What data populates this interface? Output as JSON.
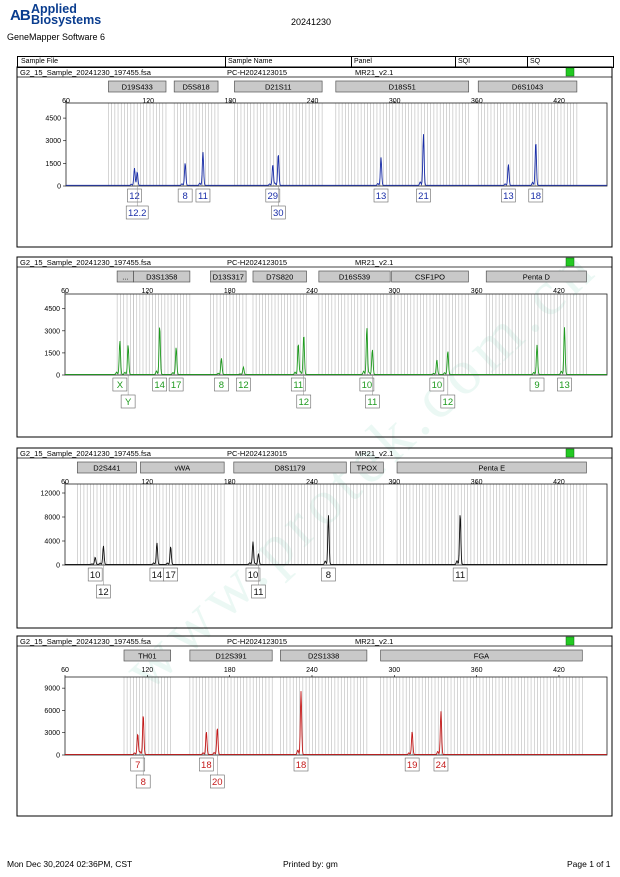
{
  "header": {
    "logo_mark": "AB",
    "logo_line1": "Applied",
    "logo_line2": "Biosystems",
    "software": "GeneMapper Software 6",
    "date": "20241230"
  },
  "columns": [
    "Sample File",
    "Sample Name",
    "Panel",
    "SQI",
    "SQ"
  ],
  "footer": {
    "printed_at": "Mon Dec 30,2024 02:36PM, CST",
    "printed_by": "Printed by: gm",
    "page": "Page 1 of 1"
  },
  "watermark": "www.protek.com.cn",
  "panels": [
    {
      "sample_file": "G2_15_Sample_20241230_197455.fsa",
      "sample_name": "PC-H2024123015",
      "panel": "MR21_v2.1",
      "status_color": "#22c922",
      "color": "#1a2ea8",
      "ymax": 5500,
      "yticks": [
        "4500",
        "3000",
        "1500",
        "0"
      ],
      "yvals": [
        4500,
        3000,
        1500,
        0
      ],
      "markers": [
        {
          "label": "D19S433",
          "start": 91,
          "end": 133
        },
        {
          "label": "D5S818",
          "start": 139,
          "end": 171
        },
        {
          "label": "D21S11",
          "start": 183,
          "end": 247
        },
        {
          "label": "D18S51",
          "start": 257,
          "end": 354
        },
        {
          "label": "D6S1043",
          "start": 361,
          "end": 433
        }
      ],
      "alleles": [
        {
          "label": "12",
          "pos": 110,
          "height": 1100,
          "row": 1
        },
        {
          "label": "12.2",
          "pos": 112,
          "height": 900,
          "row": 2
        },
        {
          "label": "8",
          "pos": 147,
          "height": 1500,
          "row": 1
        },
        {
          "label": "11",
          "pos": 160,
          "height": 2200,
          "row": 1
        },
        {
          "label": "29",
          "pos": 211,
          "height": 1400,
          "row": 1
        },
        {
          "label": "30",
          "pos": 215,
          "height": 2100,
          "row": 2
        },
        {
          "label": "13",
          "pos": 290,
          "height": 1850,
          "row": 1
        },
        {
          "label": "21",
          "pos": 321,
          "height": 3400,
          "row": 1
        },
        {
          "label": "13",
          "pos": 383,
          "height": 1400,
          "row": 1
        },
        {
          "label": "18",
          "pos": 403,
          "height": 2900,
          "row": 1
        }
      ]
    },
    {
      "sample_file": "G2_15_Sample_20241230_197455.fsa",
      "sample_name": "PC-H2024123015",
      "panel": "MR21_v2.1",
      "status_color": "#22c922",
      "color": "#1e9a1e",
      "ymax": 5500,
      "yticks": [
        "4500",
        "3000",
        "1500",
        "0"
      ],
      "yvals": [
        4500,
        3000,
        1500,
        0
      ],
      "markers": [
        {
          "label": "...",
          "start": 98,
          "end": 110
        },
        {
          "label": "D3S1358",
          "start": 110,
          "end": 151
        },
        {
          "label": "D13S317",
          "start": 166,
          "end": 192
        },
        {
          "label": "D7S820",
          "start": 197,
          "end": 236
        },
        {
          "label": "D16S539",
          "start": 245,
          "end": 297
        },
        {
          "label": "CSF1PO",
          "start": 298,
          "end": 354
        },
        {
          "label": "Penta D",
          "start": 367,
          "end": 440
        }
      ],
      "alleles": [
        {
          "label": "X",
          "pos": 100,
          "height": 2300,
          "row": 1
        },
        {
          "label": "Y",
          "pos": 106,
          "height": 2000,
          "row": 2
        },
        {
          "label": "14",
          "pos": 129,
          "height": 3300,
          "row": 1
        },
        {
          "label": "17",
          "pos": 141,
          "height": 1850,
          "row": 1
        },
        {
          "label": "8",
          "pos": 174,
          "height": 1100,
          "row": 1
        },
        {
          "label": "12",
          "pos": 190,
          "height": 500,
          "row": 1
        },
        {
          "label": "11",
          "pos": 230,
          "height": 2100,
          "row": 1
        },
        {
          "label": "12",
          "pos": 234,
          "height": 2700,
          "row": 2
        },
        {
          "label": "10",
          "pos": 280,
          "height": 3200,
          "row": 1
        },
        {
          "label": "11",
          "pos": 284,
          "height": 1700,
          "row": 2
        },
        {
          "label": "10",
          "pos": 331,
          "height": 1000,
          "row": 1
        },
        {
          "label": "12",
          "pos": 339,
          "height": 1600,
          "row": 2
        },
        {
          "label": "9",
          "pos": 404,
          "height": 2000,
          "row": 1
        },
        {
          "label": "13",
          "pos": 424,
          "height": 3200,
          "row": 1
        }
      ]
    },
    {
      "sample_file": "G2_15_Sample_20241230_197455.fsa",
      "sample_name": "PC-H2024123015",
      "panel": "MR21_v2.1",
      "status_color": "#22c922",
      "color": "#111111",
      "ymax": 13500,
      "yticks": [
        "12000",
        "8000",
        "4000",
        "0"
      ],
      "yvals": [
        12000,
        8000,
        4000,
        0
      ],
      "markers": [
        {
          "label": "D2S441",
          "start": 69,
          "end": 112
        },
        {
          "label": "vWA",
          "start": 115,
          "end": 176
        },
        {
          "label": "D8S1179",
          "start": 183,
          "end": 265
        },
        {
          "label": "TPOX",
          "start": 268,
          "end": 292
        },
        {
          "label": "Penta E",
          "start": 302,
          "end": 440
        }
      ],
      "alleles": [
        {
          "label": "10",
          "pos": 82,
          "height": 1200,
          "row": 1
        },
        {
          "label": "12",
          "pos": 88,
          "height": 3100,
          "row": 2
        },
        {
          "label": "14",
          "pos": 127,
          "height": 3600,
          "row": 1
        },
        {
          "label": "17",
          "pos": 137,
          "height": 3000,
          "row": 1
        },
        {
          "label": "10",
          "pos": 197,
          "height": 3800,
          "row": 1
        },
        {
          "label": "11",
          "pos": 201,
          "height": 1800,
          "row": 2
        },
        {
          "label": "8",
          "pos": 252,
          "height": 8200,
          "row": 1
        },
        {
          "label": "11",
          "pos": 348,
          "height": 8500,
          "row": 1
        }
      ]
    },
    {
      "sample_file": "G2_15_Sample_20241230_197455.fsa",
      "sample_name": "PC-H2024123015",
      "panel": "MR21_v2.1",
      "status_color": "#22c922",
      "color": "#c41a1a",
      "ymax": 10500,
      "yticks": [
        "9000",
        "6000",
        "3000",
        "0"
      ],
      "yvals": [
        9000,
        6000,
        3000,
        0
      ],
      "markers": [
        {
          "label": "TH01",
          "start": 103,
          "end": 137
        },
        {
          "label": "D12S391",
          "start": 151,
          "end": 211
        },
        {
          "label": "D2S1338",
          "start": 217,
          "end": 280
        },
        {
          "label": "FGA",
          "start": 290,
          "end": 437
        }
      ],
      "alleles": [
        {
          "label": "7",
          "pos": 113,
          "height": 2800,
          "row": 1
        },
        {
          "label": "8",
          "pos": 117,
          "height": 5400,
          "row": 2
        },
        {
          "label": "18",
          "pos": 163,
          "height": 3100,
          "row": 1
        },
        {
          "label": "20",
          "pos": 171,
          "height": 3600,
          "row": 2
        },
        {
          "label": "18",
          "pos": 232,
          "height": 8500,
          "row": 1
        },
        {
          "label": "19",
          "pos": 313,
          "height": 3100,
          "row": 1
        },
        {
          "label": "24",
          "pos": 334,
          "height": 5800,
          "row": 1
        }
      ]
    }
  ]
}
